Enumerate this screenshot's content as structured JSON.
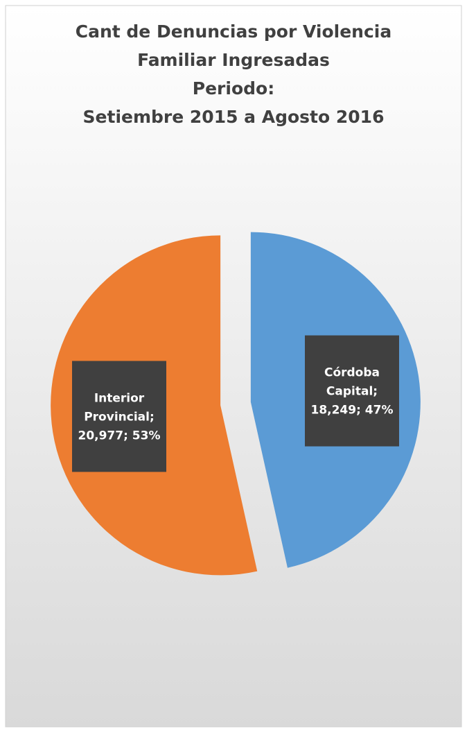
{
  "chart_data": {
    "type": "pie",
    "title": [
      "Cant de Denuncias por Violencia",
      "Familiar Ingresadas",
      "Periodo:",
      "Setiembre 2015 a Agosto 2016"
    ],
    "categories": [
      "Córdoba Capital",
      "Interior Provincial"
    ],
    "values": [
      18249,
      20977
    ],
    "value_labels": [
      "Córdoba Capital; 18,249; 47%",
      "Interior Provincial; 20,977; 53%"
    ],
    "colors": [
      "#5b9bd5",
      "#ed7d31"
    ],
    "exploded": true
  }
}
